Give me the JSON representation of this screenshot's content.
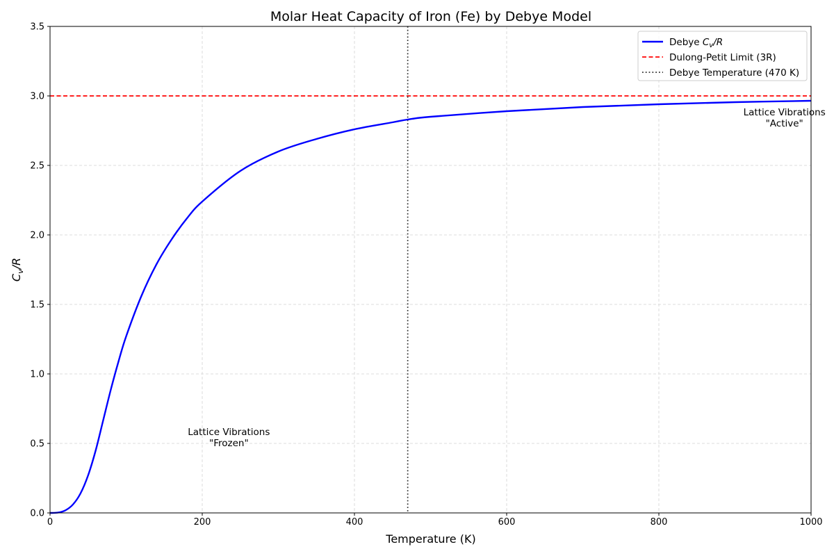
{
  "chart_data": {
    "type": "line",
    "title": "Molar Heat Capacity of Iron (Fe) by Debye Model",
    "xlabel": "Temperature (K)",
    "ylabel": {
      "main": "C",
      "sub": "v",
      "suffix": "/R"
    },
    "xlim": [
      0,
      1000
    ],
    "ylim": [
      0,
      3.5
    ],
    "x_ticks": [
      0,
      200,
      400,
      600,
      800,
      1000
    ],
    "y_ticks": [
      0.0,
      0.5,
      1.0,
      1.5,
      2.0,
      2.5,
      3.0,
      3.5
    ],
    "x_tick_labels": [
      "0",
      "200",
      "400",
      "600",
      "800",
      "1000"
    ],
    "y_tick_labels": [
      "0.0",
      "0.5",
      "1.0",
      "1.5",
      "2.0",
      "2.5",
      "3.0",
      "3.5"
    ],
    "grid": true,
    "legend_position": "top-right",
    "series": [
      {
        "name": "Debye Cv/R",
        "legend": {
          "pre": "Debye ",
          "main": "C",
          "sub": "v",
          "suffix": "/R"
        },
        "color": "#0000ff",
        "style": "solid",
        "x": [
          0,
          10,
          20,
          30,
          40,
          50,
          60,
          70,
          80,
          90,
          100,
          120,
          140,
          160,
          180,
          200,
          250,
          300,
          350,
          400,
          450,
          470,
          500,
          600,
          700,
          800,
          900,
          1000
        ],
        "y": [
          0.0,
          0.002,
          0.018,
          0.06,
          0.14,
          0.27,
          0.45,
          0.67,
          0.89,
          1.09,
          1.27,
          1.56,
          1.79,
          1.97,
          2.12,
          2.24,
          2.46,
          2.6,
          2.69,
          2.76,
          2.81,
          2.83,
          2.85,
          2.89,
          2.92,
          2.94,
          2.955,
          2.965
        ]
      },
      {
        "name": "Dulong-Petit Limit (3R)",
        "legend_text": "Dulong-Petit Limit (3R)",
        "color": "#ff0000",
        "style": "dashed",
        "hline": 3.0
      },
      {
        "name": "Debye Temperature (470 K)",
        "legend_text": "Debye Temperature (470 K)",
        "color": "#333333",
        "style": "dotted",
        "vline": 470
      }
    ],
    "annotations": [
      {
        "lines": [
          "Lattice Vibrations",
          "\"Frozen\""
        ],
        "x": 235,
        "y": 0.56
      },
      {
        "lines": [
          "Lattice Vibrations",
          "\"Active\""
        ],
        "x": 965,
        "y": 2.86
      }
    ]
  }
}
